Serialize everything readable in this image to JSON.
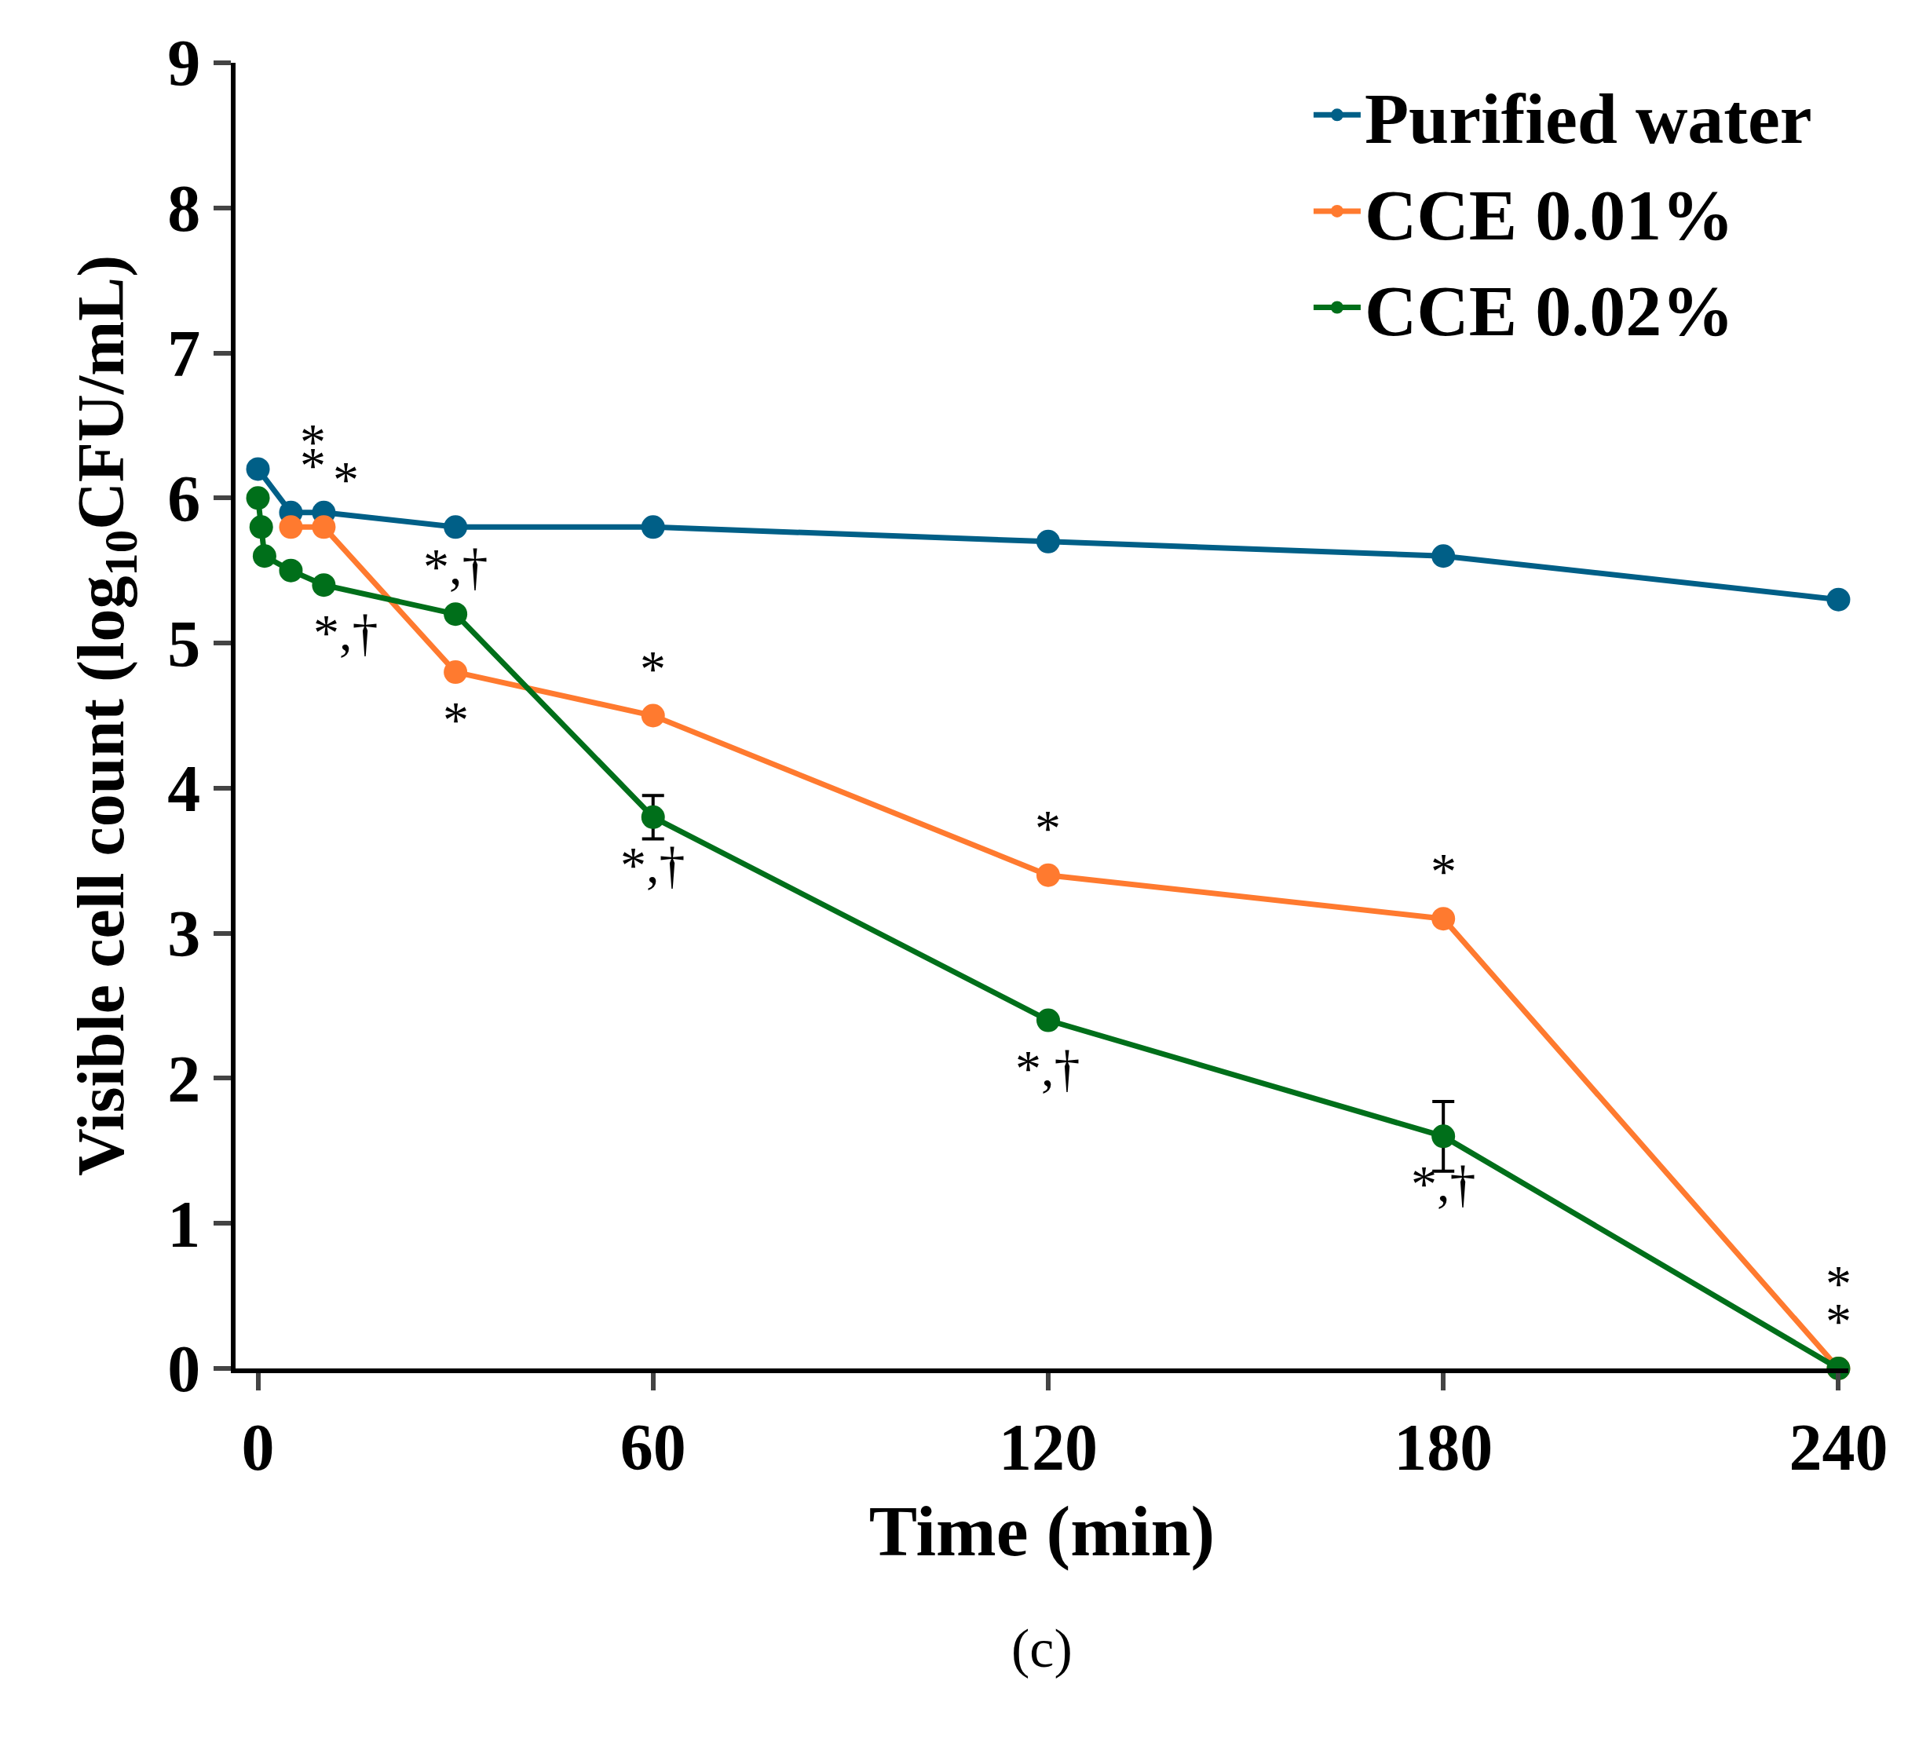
{
  "chart_data": {
    "type": "line",
    "xlabel": "Time (min)",
    "ylabel": "Visible cell count (log$_{10}$CFU/mL)",
    "x": [
      0,
      0.5,
      1,
      5,
      10,
      30,
      60,
      120,
      180,
      240
    ],
    "series": [
      {
        "name": "Purified water",
        "color": "#005f87",
        "values": [
          6.2,
          null,
          null,
          5.9,
          5.9,
          5.8,
          5.8,
          5.7,
          5.6,
          5.3
        ]
      },
      {
        "name": "CCE 0.01%",
        "color": "#ff7a2f",
        "values": [
          null,
          null,
          null,
          5.8,
          5.8,
          4.8,
          4.5,
          3.4,
          3.1,
          0
        ]
      },
      {
        "name": "CCE 0.02%",
        "color": "#006f1a",
        "values": [
          6.0,
          5.8,
          5.6,
          5.5,
          5.4,
          5.2,
          3.8,
          2.4,
          1.6,
          0
        ],
        "errors": [
          null,
          null,
          null,
          null,
          null,
          null,
          0.15,
          null,
          0.24,
          null
        ]
      }
    ],
    "xlim": [
      -3.4,
      241.5
    ],
    "xticks": [
      0,
      60,
      120,
      180,
      240
    ],
    "ylim": [
      0,
      9
    ],
    "yticks": [
      0,
      1,
      2,
      3,
      4,
      5,
      6,
      7,
      8,
      9
    ],
    "grid": false,
    "legend": "top right",
    "marker": "circle",
    "line_style": "solid",
    "annotations": [
      {
        "text": "*",
        "x": 5,
        "y": 5.9
      },
      {
        "text": "*",
        "x": 5,
        "y": 5.8
      },
      {
        "text": "*",
        "x": 10,
        "y": 5.8
      },
      {
        "text": "*,†",
        "x": 10,
        "y": 5.4
      },
      {
        "text": "*,†",
        "x": 30,
        "y": 5.2
      },
      {
        "text": "*",
        "x": 30,
        "y": 4.8
      },
      {
        "text": "*",
        "x": 60,
        "y": 4.5
      },
      {
        "text": "*,†",
        "x": 60,
        "y": 3.8
      },
      {
        "text": "*",
        "x": 120,
        "y": 3.4
      },
      {
        "text": "*,†",
        "x": 120,
        "y": 2.4
      },
      {
        "text": "*",
        "x": 180,
        "y": 3.1
      },
      {
        "text": "*,†",
        "x": 180,
        "y": 1.6
      },
      {
        "text": "*",
        "x": 240,
        "y": 0
      },
      {
        "text": "*",
        "x": 240,
        "y": 0
      },
      "(c)"
    ]
  }
}
